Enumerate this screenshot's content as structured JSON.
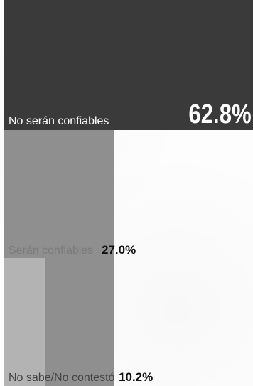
{
  "chart_data": {
    "type": "bar",
    "orientation": "horizontal-area",
    "categories": [
      "No serán confiables",
      "Serán confiables",
      "No sabe/No contestó"
    ],
    "values": [
      62.8,
      27.0,
      10.2
    ],
    "value_labels": [
      "62.8%",
      "27.0%",
      "10.2%"
    ],
    "title": "",
    "xlabel": "",
    "ylabel": "",
    "colors": [
      "#3a3a3a",
      "#8f8f8f",
      "#b3b3b3"
    ]
  }
}
